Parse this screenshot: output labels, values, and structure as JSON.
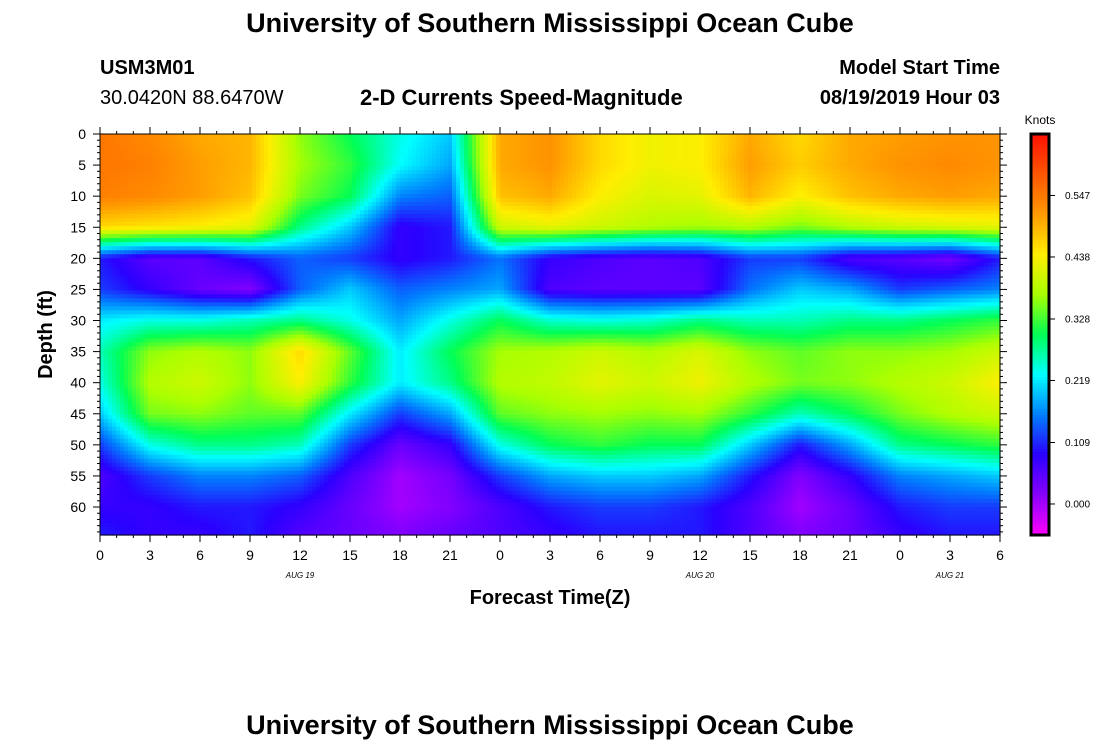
{
  "page": {
    "title": "University of Southern Mississippi Ocean Cube",
    "footer_title": "University of Southern Mississippi Ocean Cube",
    "station_id": "USM3M01",
    "station_coords": "30.0420N 88.6470W",
    "chart_subtitle": "2-D Currents Speed-Magnitude",
    "model_start_label": "Model Start Time",
    "model_start_value": "08/19/2019 Hour 03"
  },
  "chart_data": {
    "type": "heatmap",
    "title": "2-D Currents Speed-Magnitude",
    "xlabel": "Forecast Time(Z)",
    "ylabel": "Depth (ft)",
    "x_range_hours": [
      0,
      54
    ],
    "x_ticks": [
      "0",
      "3",
      "6",
      "9",
      "12",
      "15",
      "18",
      "21",
      "0",
      "3",
      "6",
      "9",
      "12",
      "15",
      "18",
      "21",
      "0",
      "3",
      "6"
    ],
    "x_tick_hours": [
      0,
      3,
      6,
      9,
      12,
      15,
      18,
      21,
      24,
      27,
      30,
      33,
      36,
      39,
      42,
      45,
      48,
      51,
      54
    ],
    "date_labels": [
      {
        "text": "AUG 19",
        "hour": 12
      },
      {
        "text": "AUG 20",
        "hour": 36
      },
      {
        "text": "AUG 21",
        "hour": 51
      }
    ],
    "y_range_ft": [
      0,
      64.5
    ],
    "y_ticks": [
      0,
      5,
      10,
      15,
      20,
      25,
      30,
      35,
      40,
      45,
      50,
      55,
      60
    ],
    "colorbar": {
      "label": "Knots",
      "range": [
        -0.055,
        0.656
      ],
      "tick_values": [
        0.547,
        0.438,
        0.328,
        0.219,
        0.109,
        0.0
      ],
      "tick_labels": [
        "0.547",
        "0.438",
        "0.328",
        "0.219",
        "0.109",
        "0.000"
      ],
      "colors": [
        "#ff00ff",
        "#8800ff",
        "#2a00ff",
        "#0080ff",
        "#00ffff",
        "#00ff55",
        "#aaff00",
        "#ffee00",
        "#ff9900",
        "#ff5500",
        "#ff1100"
      ]
    },
    "grid_hours": [
      0,
      3,
      6,
      9,
      12,
      15,
      18,
      21,
      24,
      27,
      30,
      33,
      36,
      39,
      42,
      45,
      48,
      51,
      54
    ],
    "grid_depths_ft": [
      0,
      5,
      10,
      15,
      20,
      25,
      30,
      35,
      40,
      45,
      50,
      55,
      60,
      64
    ],
    "values": [
      [
        0.55,
        0.53,
        0.5,
        0.49,
        0.36,
        0.3,
        0.24,
        0.2,
        0.5,
        0.52,
        0.46,
        0.43,
        0.44,
        0.5,
        0.46,
        0.5,
        0.51,
        0.52,
        0.52
      ],
      [
        0.55,
        0.54,
        0.51,
        0.49,
        0.37,
        0.32,
        0.23,
        0.18,
        0.5,
        0.52,
        0.46,
        0.43,
        0.44,
        0.51,
        0.47,
        0.5,
        0.52,
        0.53,
        0.52
      ],
      [
        0.54,
        0.53,
        0.51,
        0.48,
        0.35,
        0.3,
        0.16,
        0.14,
        0.48,
        0.5,
        0.44,
        0.41,
        0.42,
        0.49,
        0.44,
        0.48,
        0.5,
        0.51,
        0.5
      ],
      [
        0.46,
        0.45,
        0.44,
        0.42,
        0.28,
        0.2,
        0.08,
        0.1,
        0.4,
        0.42,
        0.4,
        0.38,
        0.37,
        0.38,
        0.35,
        0.38,
        0.4,
        0.41,
        0.42
      ],
      [
        0.1,
        0.05,
        0.05,
        0.1,
        0.14,
        0.12,
        0.08,
        0.1,
        0.15,
        0.08,
        0.06,
        0.05,
        0.06,
        0.12,
        0.12,
        0.06,
        0.05,
        0.03,
        0.1
      ],
      [
        0.12,
        0.08,
        0.04,
        0.02,
        0.14,
        0.2,
        0.14,
        0.16,
        0.18,
        0.06,
        0.05,
        0.05,
        0.05,
        0.15,
        0.2,
        0.18,
        0.12,
        0.14,
        0.16
      ],
      [
        0.22,
        0.24,
        0.24,
        0.26,
        0.28,
        0.24,
        0.18,
        0.24,
        0.3,
        0.25,
        0.24,
        0.25,
        0.28,
        0.26,
        0.26,
        0.28,
        0.28,
        0.3,
        0.32
      ],
      [
        0.26,
        0.36,
        0.38,
        0.36,
        0.46,
        0.34,
        0.22,
        0.3,
        0.37,
        0.38,
        0.4,
        0.38,
        0.41,
        0.36,
        0.34,
        0.36,
        0.36,
        0.37,
        0.4
      ],
      [
        0.24,
        0.38,
        0.4,
        0.36,
        0.44,
        0.32,
        0.22,
        0.28,
        0.38,
        0.39,
        0.42,
        0.4,
        0.43,
        0.38,
        0.35,
        0.36,
        0.38,
        0.4,
        0.44
      ],
      [
        0.2,
        0.35,
        0.36,
        0.34,
        0.34,
        0.22,
        0.12,
        0.18,
        0.34,
        0.36,
        0.37,
        0.36,
        0.37,
        0.32,
        0.26,
        0.3,
        0.35,
        0.38,
        0.4
      ],
      [
        0.12,
        0.24,
        0.28,
        0.28,
        0.26,
        0.12,
        0.04,
        0.08,
        0.24,
        0.3,
        0.32,
        0.3,
        0.3,
        0.2,
        0.1,
        0.18,
        0.28,
        0.3,
        0.32
      ],
      [
        0.06,
        0.12,
        0.16,
        0.16,
        0.14,
        0.06,
        0.0,
        0.03,
        0.12,
        0.18,
        0.2,
        0.2,
        0.18,
        0.1,
        0.02,
        0.08,
        0.16,
        0.18,
        0.2
      ],
      [
        0.08,
        0.08,
        0.1,
        0.1,
        0.08,
        0.04,
        0.0,
        0.02,
        0.06,
        0.1,
        0.12,
        0.12,
        0.1,
        0.06,
        0.0,
        0.04,
        0.1,
        0.12,
        0.12
      ],
      [
        0.1,
        0.08,
        0.08,
        0.1,
        0.06,
        0.04,
        0.02,
        0.04,
        0.06,
        0.08,
        0.1,
        0.1,
        0.1,
        0.06,
        0.02,
        0.04,
        0.08,
        0.1,
        0.1
      ]
    ]
  }
}
